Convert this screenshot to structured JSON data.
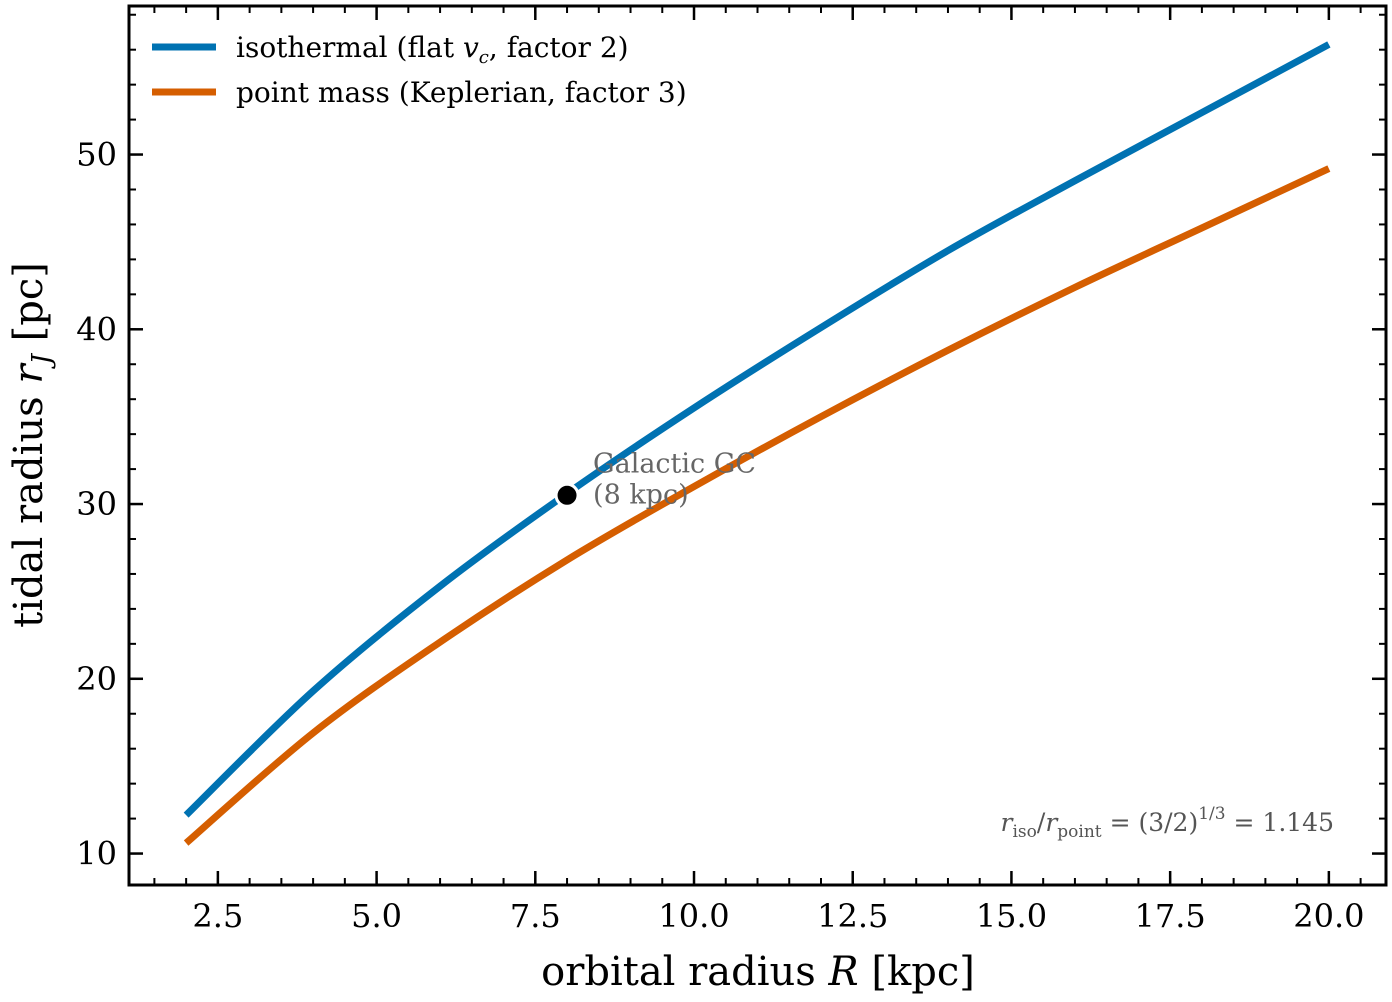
{
  "chart_data": {
    "type": "line",
    "title": "",
    "xlabel_prefix": "orbital radius ",
    "xlabel_var": "R",
    "xlabel_suffix": " [kpc]",
    "ylabel_prefix": "tidal radius ",
    "ylabel_var": "r",
    "ylabel_sub": "J",
    "ylabel_suffix": " [pc]",
    "xlim": [
      1.1,
      20.9
    ],
    "ylim": [
      8.2,
      58.5
    ],
    "x_ticks": [
      2.5,
      5.0,
      7.5,
      10.0,
      12.5,
      15.0,
      17.5,
      20.0
    ],
    "x_tick_labels": [
      "2.5",
      "5.0",
      "7.5",
      "10.0",
      "12.5",
      "15.0",
      "17.5",
      "20.0"
    ],
    "x_minor_step": 0.5,
    "y_ticks": [
      10,
      20,
      30,
      40,
      50
    ],
    "y_tick_labels": [
      "10",
      "20",
      "30",
      "40",
      "50"
    ],
    "y_minor_step": 2,
    "grid": false,
    "legend_position": "top-left",
    "series": [
      {
        "name_parts": [
          "isothermal (flat ",
          "v",
          "c",
          ", factor 2)"
        ],
        "color": "#0072b2",
        "x": [
          2.0,
          4.0,
          6.0,
          8.0,
          10.0,
          12.0,
          14.0,
          16.0,
          18.0,
          20.0
        ],
        "y": [
          12.2,
          19.3,
          25.3,
          30.6,
          35.5,
          40.1,
          44.5,
          48.5,
          52.4,
          56.3
        ]
      },
      {
        "name_parts": [
          "point mass (Keplerian, factor 3)"
        ],
        "color": "#d55e00",
        "x": [
          2.0,
          4.0,
          6.0,
          8.0,
          10.0,
          12.0,
          14.0,
          16.0,
          18.0,
          20.0
        ],
        "y": [
          10.6,
          16.9,
          22.1,
          26.8,
          31.0,
          35.0,
          38.8,
          42.4,
          45.8,
          49.2
        ]
      }
    ],
    "marker": {
      "x": 8.0,
      "y": 30.5,
      "color": "#000000"
    },
    "annotation_lines": [
      "Galactic GC",
      "(8 kpc)"
    ],
    "formula": {
      "r1": "r",
      "s1": "iso",
      "slash": "/",
      "r2": "r",
      "s2": "point",
      "mid": " = (3/2)",
      "sup": "1/3",
      "tail": " = 1.145"
    }
  }
}
